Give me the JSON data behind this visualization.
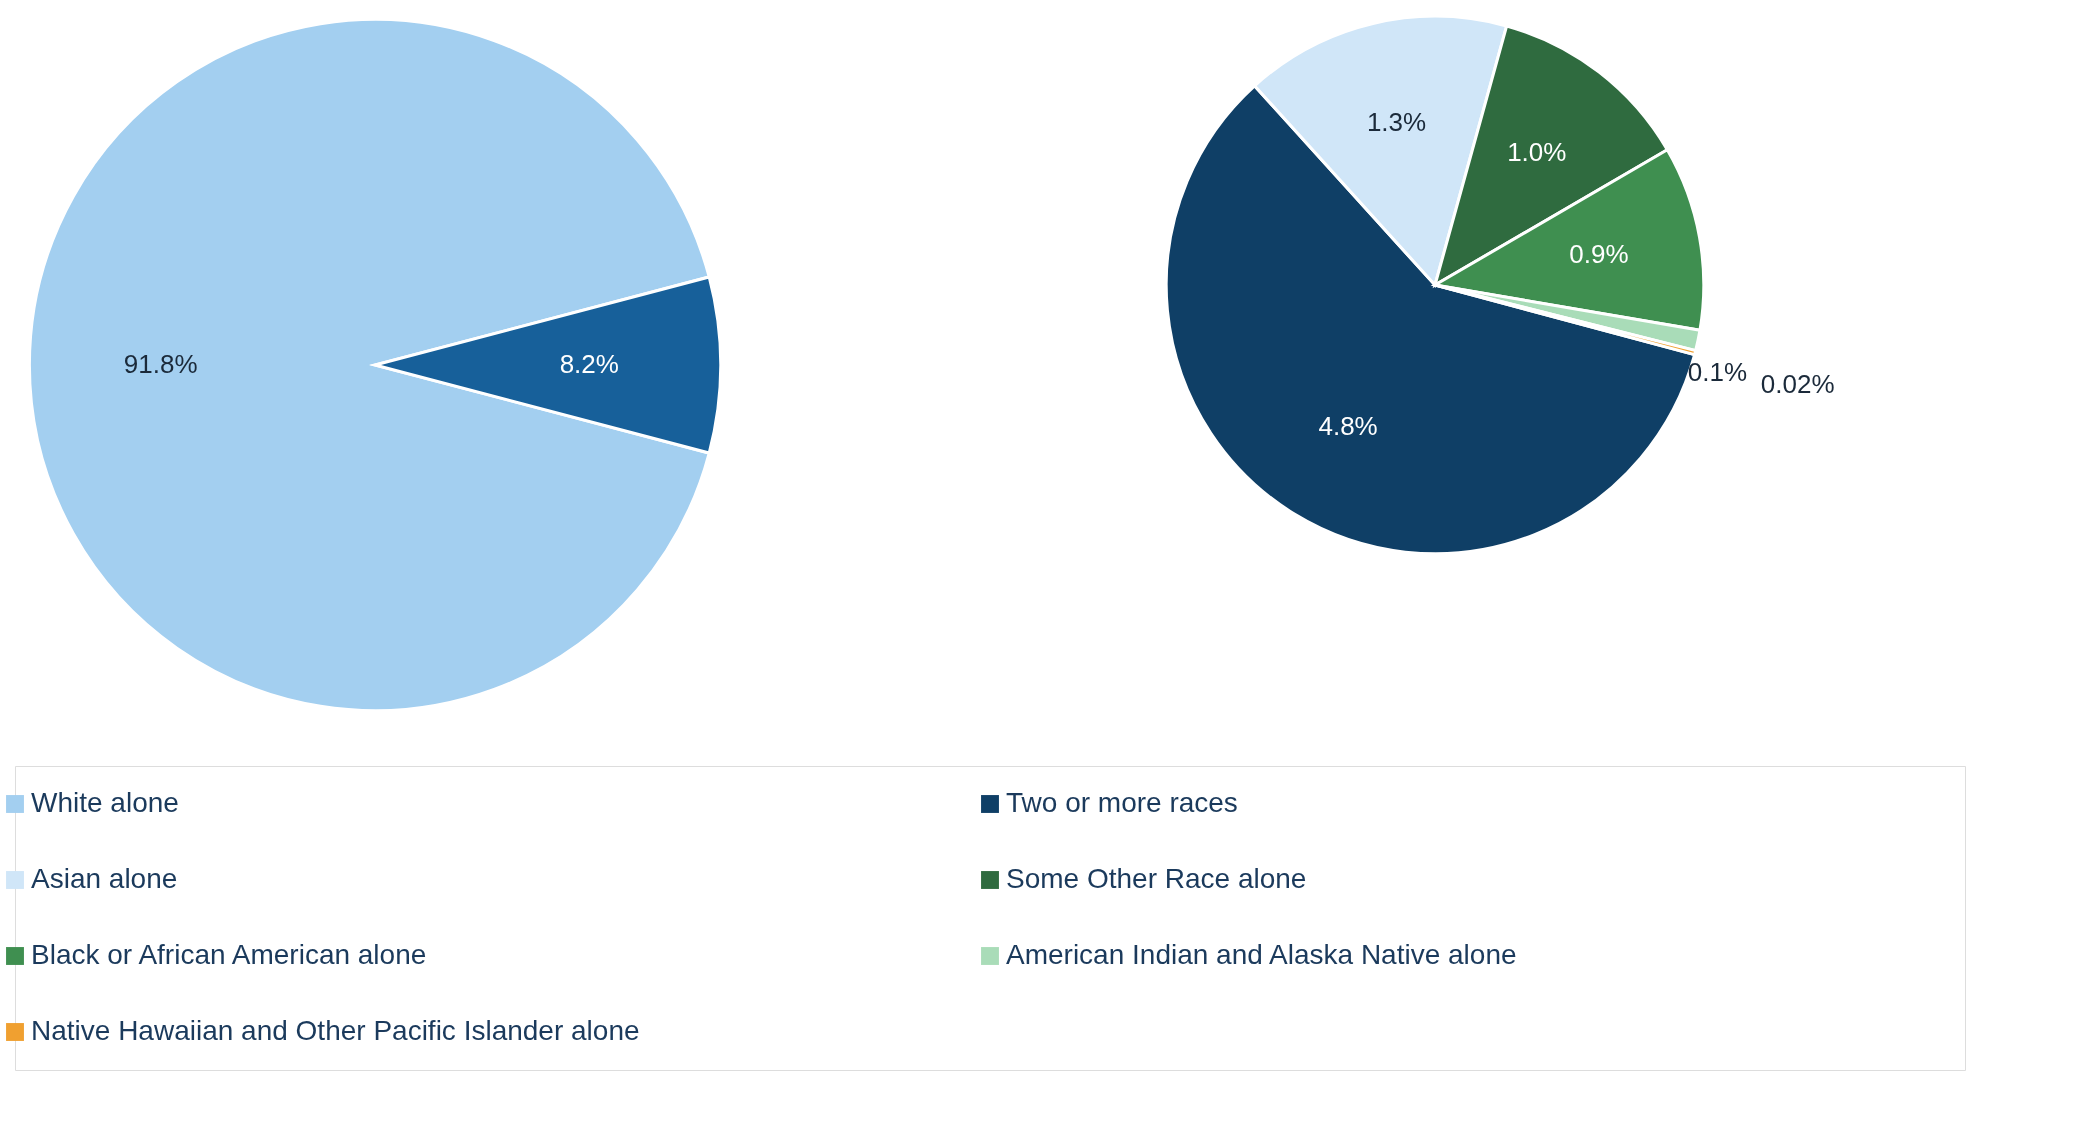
{
  "chart_data": [
    {
      "type": "pie",
      "categories": [
        "White alone",
        null
      ],
      "values": [
        91.8,
        8.2
      ],
      "colors": [
        "#a3cff0",
        "#17609a"
      ],
      "value_labels": [
        "91.8%",
        "8.2%"
      ],
      "legend": "bottom"
    },
    {
      "type": "pie",
      "categories": [
        "Two or more races",
        "Asian alone",
        "Some Other Race alone",
        "Black or African American alone",
        "American Indian and Alaska Native alone",
        "Native Hawaiian and Other Pacific Islander alone"
      ],
      "values": [
        4.8,
        1.3,
        1.0,
        0.9,
        0.1,
        0.02
      ],
      "colors": [
        "#0f3f66",
        "#d0e6f8",
        "#2f6b3f",
        "#3f8f50",
        "#a9dcb8",
        "#f0a030"
      ],
      "value_labels": [
        "4.8%",
        "1.3%",
        "1.0%",
        "0.9%",
        "0.1%",
        "0.02%"
      ],
      "legend": "bottom"
    }
  ]
}
